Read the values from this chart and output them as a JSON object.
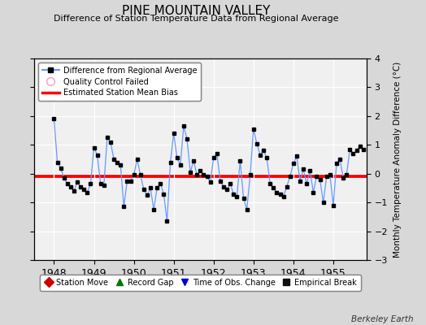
{
  "title": "PINE MOUNTAIN VALLEY",
  "subtitle": "Difference of Station Temperature Data from Regional Average",
  "ylabel": "Monthly Temperature Anomaly Difference (°C)",
  "credit": "Berkeley Earth",
  "ylim": [
    -3,
    4
  ],
  "xlim": [
    1947.5,
    1955.83
  ],
  "xticks": [
    1948,
    1949,
    1950,
    1951,
    1952,
    1953,
    1954,
    1955
  ],
  "yticks": [
    -3,
    -2,
    -1,
    0,
    1,
    2,
    3,
    4
  ],
  "bias": -0.07,
  "line_color": "#6699ff",
  "marker_color": "#000000",
  "bias_color": "#ff0000",
  "bg_color": "#d8d8d8",
  "plot_bg_color": "#f0f0f0",
  "times": [
    1948.0,
    1948.083,
    1948.167,
    1948.25,
    1948.333,
    1948.417,
    1948.5,
    1948.583,
    1948.667,
    1948.75,
    1948.833,
    1948.917,
    1949.0,
    1949.083,
    1949.167,
    1949.25,
    1949.333,
    1949.417,
    1949.5,
    1949.583,
    1949.667,
    1949.75,
    1949.833,
    1949.917,
    1950.0,
    1950.083,
    1950.167,
    1950.25,
    1950.333,
    1950.417,
    1950.5,
    1950.583,
    1950.667,
    1950.75,
    1950.833,
    1950.917,
    1951.0,
    1951.083,
    1951.167,
    1951.25,
    1951.333,
    1951.417,
    1951.5,
    1951.583,
    1951.667,
    1951.75,
    1951.833,
    1951.917,
    1952.0,
    1952.083,
    1952.167,
    1952.25,
    1952.333,
    1952.417,
    1952.5,
    1952.583,
    1952.667,
    1952.75,
    1952.833,
    1952.917,
    1953.0,
    1953.083,
    1953.167,
    1953.25,
    1953.333,
    1953.417,
    1953.5,
    1953.583,
    1953.667,
    1953.75,
    1953.833,
    1953.917,
    1954.0,
    1954.083,
    1954.167,
    1954.25,
    1954.333,
    1954.417,
    1954.5,
    1954.583,
    1954.667,
    1954.75,
    1954.833,
    1954.917,
    1955.0,
    1955.083,
    1955.167,
    1955.25,
    1955.333,
    1955.417,
    1955.5,
    1955.583,
    1955.667,
    1955.75
  ],
  "values": [
    1.9,
    0.4,
    0.2,
    -0.15,
    -0.35,
    -0.45,
    -0.6,
    -0.3,
    -0.45,
    -0.55,
    -0.65,
    -0.35,
    0.9,
    0.65,
    -0.35,
    -0.4,
    1.25,
    1.1,
    0.5,
    0.4,
    0.3,
    -1.15,
    -0.25,
    -0.25,
    -0.05,
    0.5,
    -0.05,
    -0.55,
    -0.75,
    -0.5,
    -1.25,
    -0.5,
    -0.35,
    -0.7,
    -1.65,
    0.4,
    1.4,
    0.55,
    0.3,
    1.65,
    1.2,
    0.05,
    0.45,
    -0.05,
    0.1,
    -0.05,
    -0.1,
    -0.3,
    0.55,
    0.7,
    -0.25,
    -0.45,
    -0.55,
    -0.35,
    -0.7,
    -0.8,
    0.45,
    -0.85,
    -1.25,
    -0.05,
    1.55,
    1.05,
    0.65,
    0.8,
    0.55,
    -0.35,
    -0.5,
    -0.65,
    -0.7,
    -0.8,
    -0.45,
    -0.1,
    0.35,
    0.6,
    -0.25,
    0.15,
    -0.35,
    0.1,
    -0.65,
    -0.1,
    -0.2,
    -1.0,
    -0.1,
    -0.05,
    -1.1,
    0.35,
    0.5,
    -0.15,
    -0.05,
    0.85,
    0.7,
    0.8,
    0.95,
    0.85
  ]
}
